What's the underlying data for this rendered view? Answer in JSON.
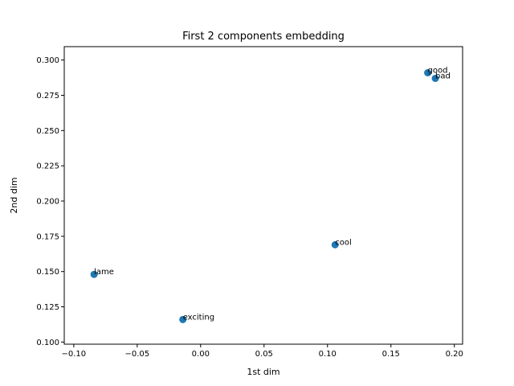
{
  "chart_data": {
    "type": "scatter",
    "title": "First 2 components embedding",
    "xlabel": "1st dim",
    "ylabel": "2nd dim",
    "xlim": [
      -0.1075,
      0.2065
    ],
    "ylim": [
      0.0985,
      0.3095
    ],
    "xticks": [
      -0.1,
      -0.05,
      0.0,
      0.05,
      0.1,
      0.15,
      0.2
    ],
    "xtick_labels": [
      "−0.10",
      "−0.05",
      "0.00",
      "0.05",
      "0.10",
      "0.15",
      "0.20"
    ],
    "yticks": [
      0.1,
      0.125,
      0.15,
      0.175,
      0.2,
      0.225,
      0.25,
      0.275,
      0.3
    ],
    "ytick_labels": [
      "0.100",
      "0.125",
      "0.150",
      "0.175",
      "0.200",
      "0.225",
      "0.250",
      "0.275",
      "0.300"
    ],
    "grid": false,
    "marker_color": "#1f77b4",
    "points": [
      {
        "label": "good",
        "x": 0.179,
        "y": 0.291
      },
      {
        "label": "bad",
        "x": 0.185,
        "y": 0.287
      },
      {
        "label": "cool",
        "x": 0.106,
        "y": 0.169
      },
      {
        "label": "lame",
        "x": -0.084,
        "y": 0.148
      },
      {
        "label": "exciting",
        "x": -0.014,
        "y": 0.116
      }
    ]
  }
}
